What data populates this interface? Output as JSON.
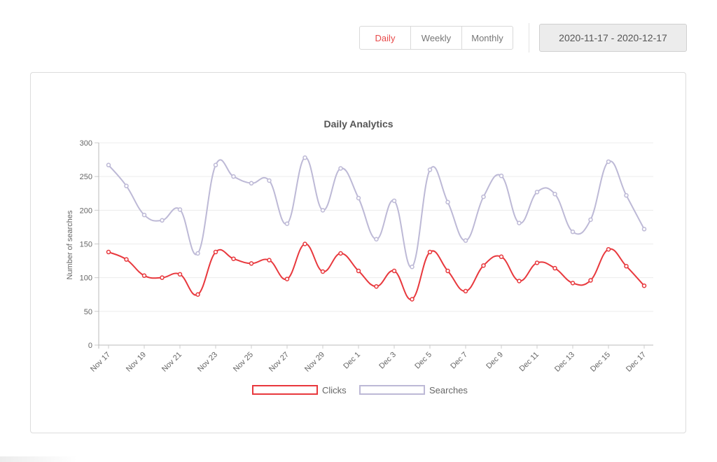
{
  "toolbar": {
    "tabs": [
      {
        "label": "Daily",
        "active": true
      },
      {
        "label": "Weekly",
        "active": false
      },
      {
        "label": "Monthly",
        "active": false
      }
    ],
    "date_range": "2020-11-17 - 2020-12-17"
  },
  "colors": {
    "clicks": "#e8383d",
    "searches": "#bdb9d6",
    "accent": "#e84a4a"
  },
  "chart_data": {
    "type": "line",
    "title": "Daily Analytics",
    "xlabel": "",
    "ylabel": "Number of searches",
    "ylim": [
      0,
      300
    ],
    "yticks": [
      0,
      50,
      100,
      150,
      200,
      250,
      300
    ],
    "x": [
      "Nov 17",
      "Nov 18",
      "Nov 19",
      "Nov 20",
      "Nov 21",
      "Nov 22",
      "Nov 23",
      "Nov 24",
      "Nov 25",
      "Nov 26",
      "Nov 27",
      "Nov 28",
      "Nov 29",
      "Nov 30",
      "Dec 1",
      "Dec 2",
      "Dec 3",
      "Dec 4",
      "Dec 5",
      "Dec 6",
      "Dec 7",
      "Dec 8",
      "Dec 9",
      "Dec 10",
      "Dec 11",
      "Dec 12",
      "Dec 13",
      "Dec 14",
      "Dec 15",
      "Dec 16",
      "Dec 17"
    ],
    "xtick_labels": [
      "Nov 17",
      "Nov 19",
      "Nov 21",
      "Nov 23",
      "Nov 25",
      "Nov 27",
      "Nov 29",
      "Dec 1",
      "Dec 3",
      "Dec 5",
      "Dec 7",
      "Dec 9",
      "Dec 11",
      "Dec 13",
      "Dec 15",
      "Dec 17"
    ],
    "series": [
      {
        "name": "Clicks",
        "values": [
          138,
          127,
          103,
          100,
          105,
          75,
          138,
          128,
          121,
          126,
          98,
          150,
          109,
          136,
          110,
          87,
          110,
          68,
          138,
          110,
          80,
          118,
          131,
          95,
          122,
          114,
          92,
          96,
          142,
          117,
          88
        ]
      },
      {
        "name": "Searches",
        "values": [
          267,
          236,
          193,
          185,
          201,
          136,
          267,
          250,
          240,
          244,
          180,
          278,
          200,
          262,
          218,
          157,
          214,
          116,
          260,
          212,
          155,
          220,
          251,
          181,
          227,
          224,
          168,
          186,
          272,
          222,
          172
        ]
      }
    ],
    "legend": "bottom",
    "grid": true
  }
}
